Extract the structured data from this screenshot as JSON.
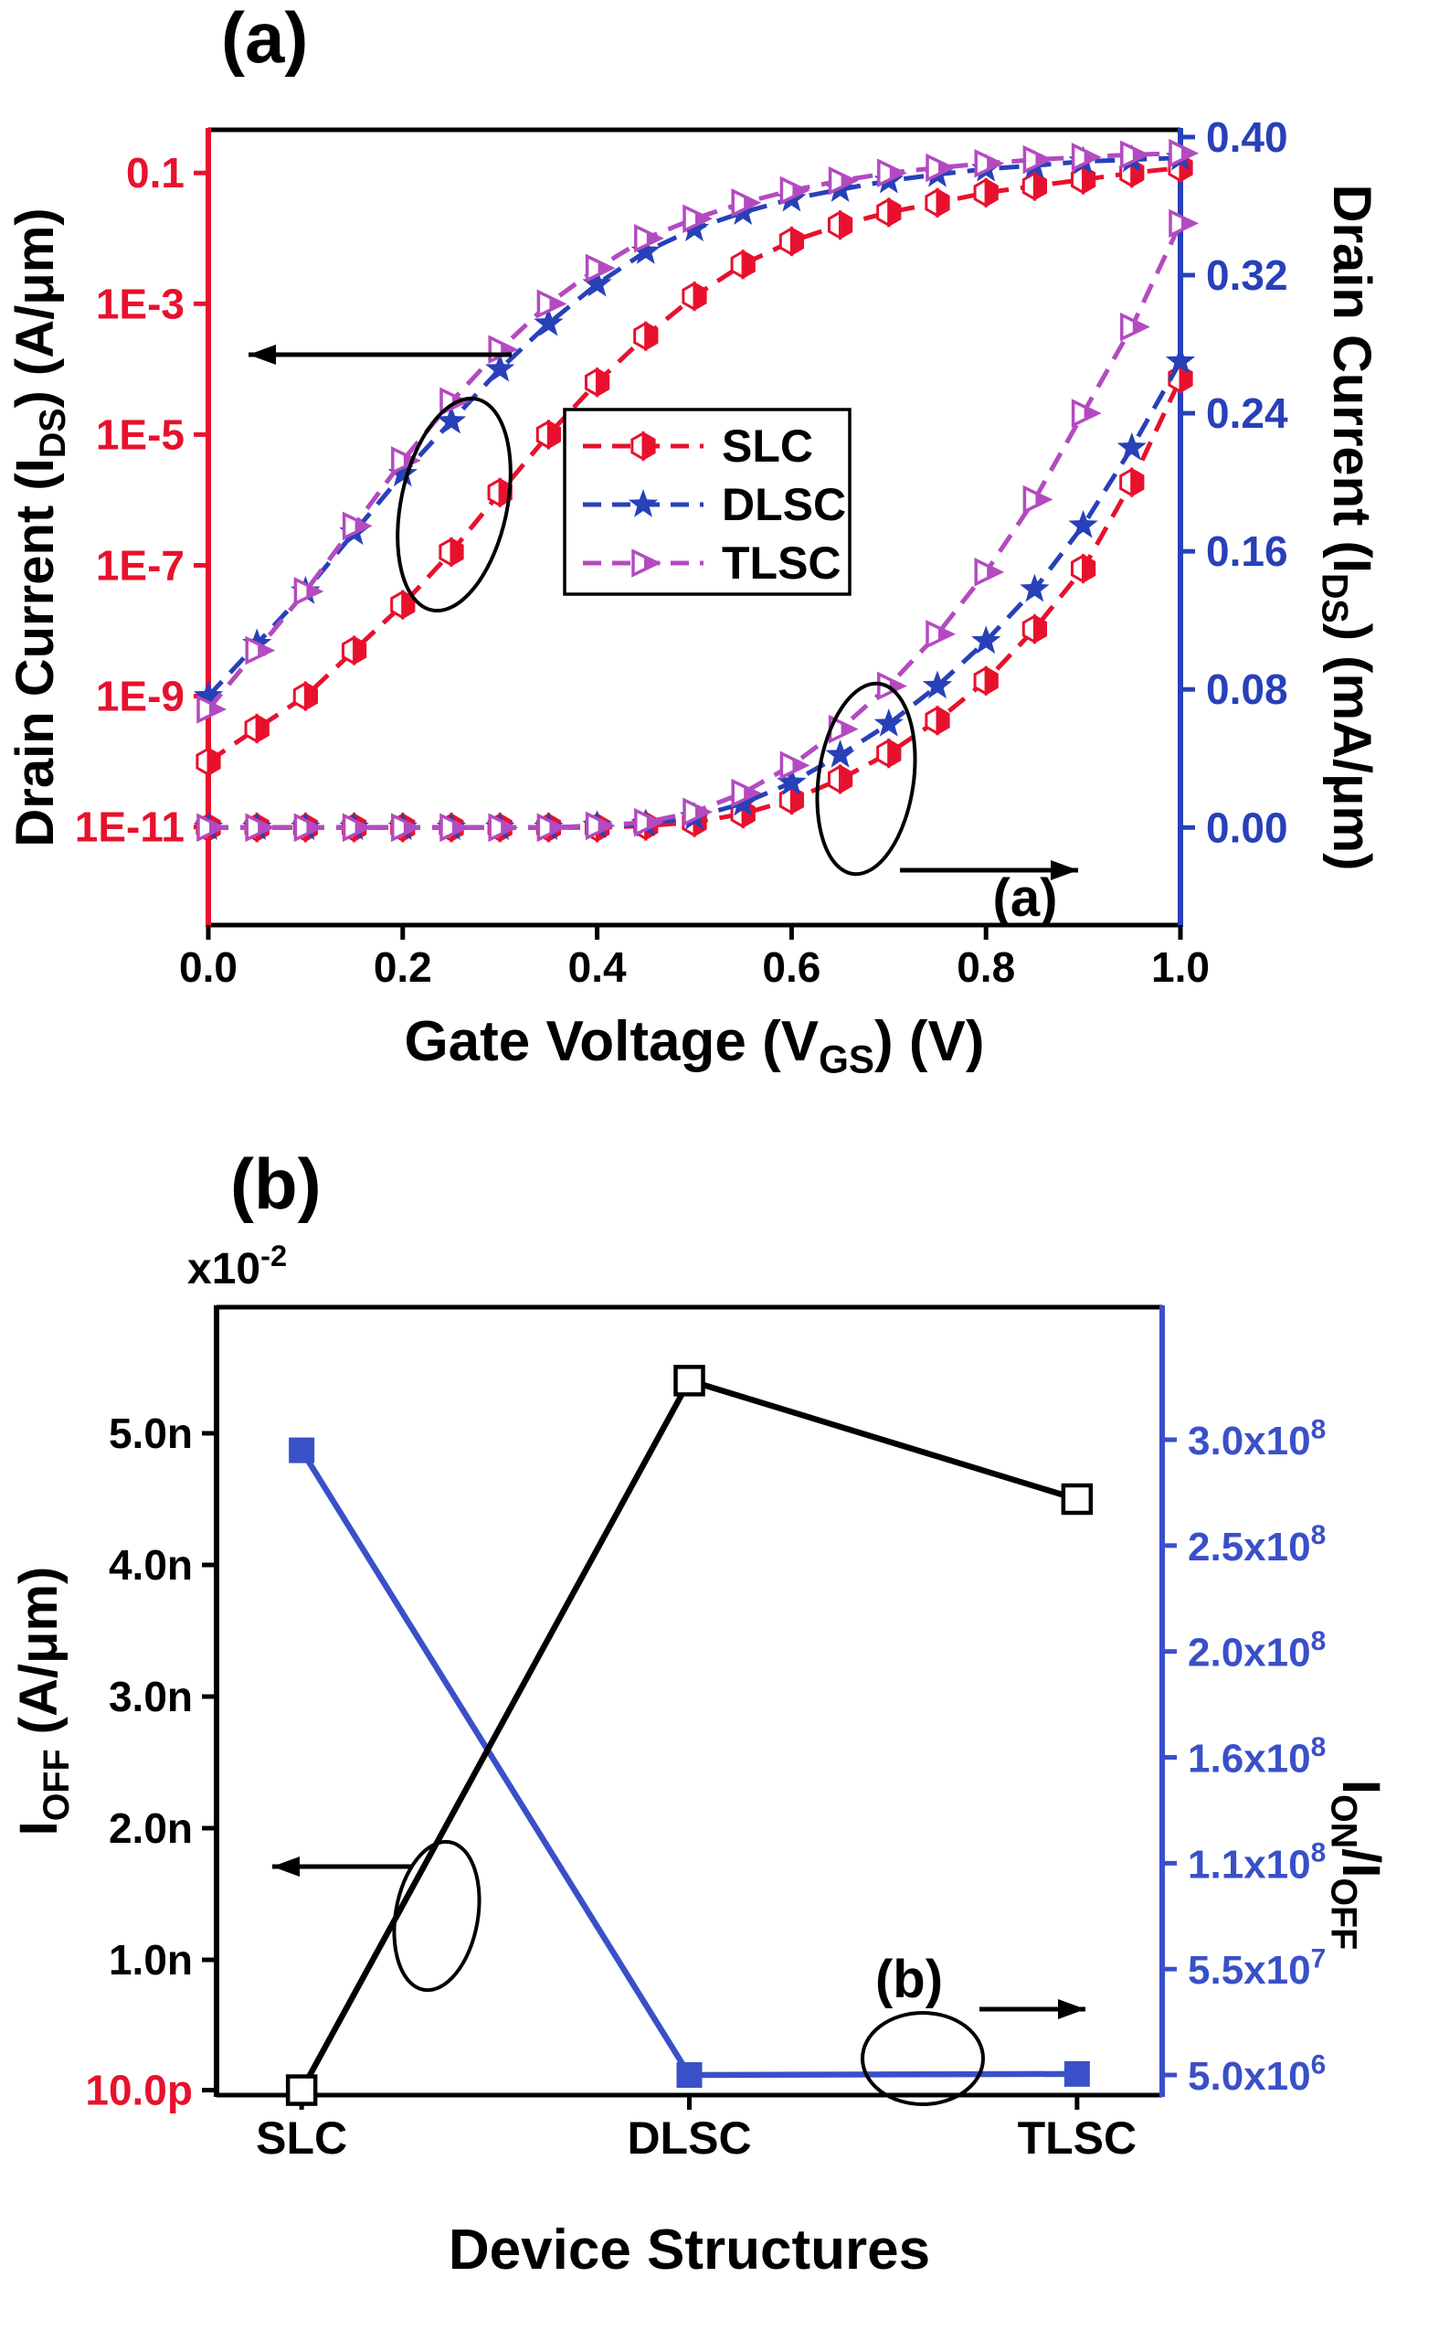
{
  "figure": {
    "background": "#ffffff"
  },
  "chart_data": [
    {
      "id": "a",
      "type": "line",
      "panel_label": "(a)",
      "inner_annotation": "(a)",
      "xlabel": "Gate Voltage (V_{GS}) (V)",
      "x_range": [
        0,
        1
      ],
      "x_ticks": {
        "values": [
          0,
          0.2,
          0.4,
          0.6,
          0.8,
          1
        ],
        "labels": [
          "0.0",
          "0.2",
          "0.4",
          "0.6",
          "0.8",
          "1.0"
        ]
      },
      "left_axis": {
        "label": "Drain Current (I_{DS}) (A/μm)",
        "scale": "log",
        "color": "#e8112d",
        "range_log10": [
          -12.5,
          -0.34
        ],
        "ticks": {
          "values": [
            0.1,
            0.001,
            1e-05,
            1e-07,
            1e-09,
            1e-11
          ],
          "labels": [
            "0.1",
            "1E-3",
            "1E-5",
            "1E-7",
            "1E-9",
            "1E-11"
          ]
        }
      },
      "right_axis": {
        "label": "Drain Current (I_{DS}) (mA/μm)",
        "scale": "linear",
        "color": "#2840b8",
        "range": [
          -0.0565,
          0.4042
        ],
        "ticks": {
          "values": [
            0.4,
            0.32,
            0.24,
            0.16,
            0.08,
            0.0
          ],
          "labels": [
            "0.40",
            "0.32",
            "0.24",
            "0.16",
            "0.08",
            "0.00"
          ]
        }
      },
      "x": [
        0,
        0.05,
        0.1,
        0.15,
        0.2,
        0.25,
        0.3,
        0.35,
        0.4,
        0.45,
        0.5,
        0.55,
        0.6,
        0.65,
        0.7,
        0.75,
        0.8,
        0.85,
        0.9,
        0.95,
        1
      ],
      "series": [
        {
          "name": "SLC",
          "color": "#e8112d",
          "marker": "half-hexagon",
          "log_values_A_per_um": [
            1e-10,
            3.2e-10,
            1e-09,
            5e-09,
            2.5e-08,
            1.6e-07,
            1.3e-06,
            1e-05,
            6.3e-05,
            0.00032,
            0.0013,
            0.004,
            0.009,
            0.016,
            0.025,
            0.035,
            0.05,
            0.063,
            0.079,
            0.1,
            0.12
          ],
          "linear_values_mA_per_um": [
            0,
            0,
            0,
            0,
            0,
            0,
            0,
            0,
            0,
            0.001,
            0.003,
            0.008,
            0.016,
            0.028,
            0.043,
            0.062,
            0.085,
            0.115,
            0.15,
            0.2,
            0.26
          ]
        },
        {
          "name": "DLSC",
          "color": "#2840b8",
          "marker": "star",
          "log_values_A_per_um": [
            1e-09,
            6.3e-09,
            4e-08,
            3.2e-07,
            2.5e-06,
            1.6e-05,
            0.0001,
            0.0005,
            0.002,
            0.0063,
            0.014,
            0.025,
            0.04,
            0.056,
            0.076,
            0.095,
            0.115,
            0.13,
            0.15,
            0.16,
            0.17
          ],
          "linear_values_mA_per_um": [
            0,
            0,
            0,
            0,
            0,
            0,
            0,
            0,
            0.001,
            0.002,
            0.006,
            0.014,
            0.026,
            0.042,
            0.06,
            0.082,
            0.108,
            0.138,
            0.175,
            0.22,
            0.27
          ]
        },
        {
          "name": "TLSC",
          "color": "#b44ac0",
          "marker": "half-triangle-right",
          "log_values_A_per_um": [
            6.3e-10,
            5e-09,
            4e-08,
            4e-07,
            4e-06,
            3.2e-05,
            0.0002,
            0.001,
            0.0035,
            0.01,
            0.02,
            0.035,
            0.054,
            0.076,
            0.1,
            0.12,
            0.14,
            0.16,
            0.175,
            0.19,
            0.2
          ],
          "linear_values_mA_per_um": [
            0,
            0,
            0,
            0,
            0,
            0,
            0,
            0,
            0.001,
            0.003,
            0.009,
            0.02,
            0.036,
            0.057,
            0.082,
            0.112,
            0.148,
            0.19,
            0.24,
            0.29,
            0.35
          ]
        }
      ],
      "legend": {
        "entries": [
          "SLC",
          "DLSC",
          "TLSC"
        ]
      }
    },
    {
      "id": "b",
      "type": "line",
      "panel_label": "(b)",
      "inner_annotation": "(b)",
      "xlabel": "Device Structures",
      "categories": [
        "SLC",
        "DLSC",
        "TLSC"
      ],
      "left_axis": {
        "label": "I_{OFF} (A/μm)",
        "multiplier_label": "x10^{-2}",
        "color": "#000000",
        "range_nA": [
          0,
          5.95
        ],
        "ticks": {
          "values_nA": [
            0.01,
            1,
            2,
            3,
            4,
            5
          ],
          "labels": [
            "10.0p",
            "1.0n",
            "2.0n",
            "3.0n",
            "4.0n",
            "5.0n"
          ],
          "label_colors": [
            "#e8112d",
            "#000000",
            "#000000",
            "#000000",
            "#000000",
            "#000000"
          ]
        }
      },
      "right_axis": {
        "label": "I_{ON}/I_{OFF}",
        "color": "#3a50c8",
        "ticks": {
          "values": [
            5000000.0,
            55000000.0,
            110000000.0,
            160000000.0,
            200000000.0,
            250000000.0,
            300000000.0
          ],
          "labels": [
            "5.0x10^{6}",
            "5.5x10^{7}",
            "1.1x10^{8}",
            "1.6x10^{8}",
            "2.0x10^{8}",
            "2.5x10^{8}",
            "3.0x10^{8}"
          ]
        }
      },
      "series": [
        {
          "name": "I_OFF",
          "axis": "left",
          "color": "#000000",
          "marker": "open-square",
          "values_nA": [
            0.01,
            5.4,
            4.5
          ]
        },
        {
          "name": "I_ON/I_OFF",
          "axis": "right",
          "color": "#3a50c8",
          "marker": "filled-square",
          "values": [
            295000000.0,
            5000000.0,
            5500000.0
          ]
        }
      ]
    }
  ]
}
